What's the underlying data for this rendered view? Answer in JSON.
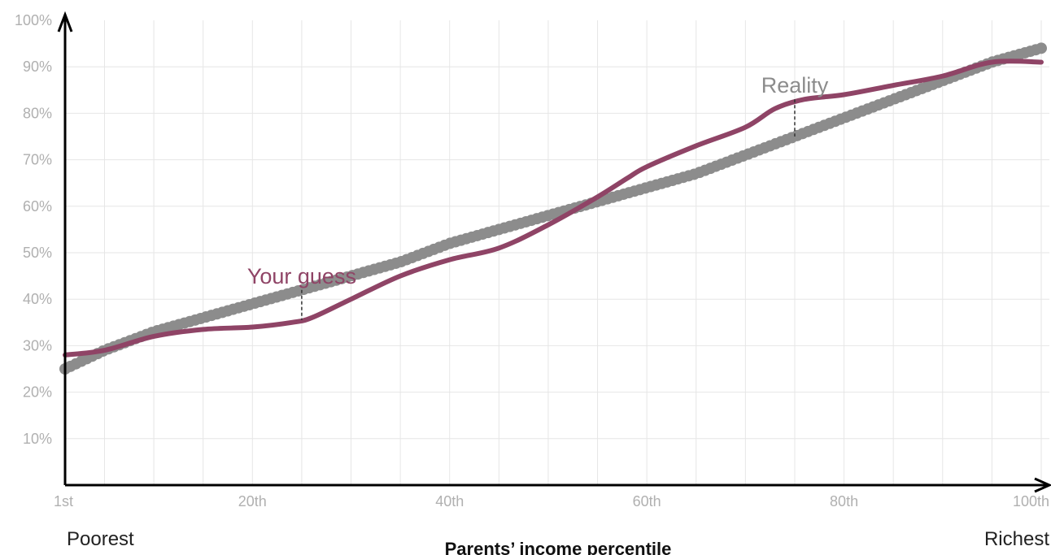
{
  "chart_data": {
    "type": "line",
    "title": "",
    "xlabel": "Parents’ income percentile",
    "ylabel": "",
    "x_start_label": "Poorest",
    "x_end_label": "Richest",
    "xlim": [
      1,
      100
    ],
    "ylim": [
      0,
      100
    ],
    "x_ticks": [
      {
        "value": 1,
        "label": "1st"
      },
      {
        "value": 20,
        "label": "20th"
      },
      {
        "value": 40,
        "label": "40th"
      },
      {
        "value": 60,
        "label": "60th"
      },
      {
        "value": 80,
        "label": "80th"
      },
      {
        "value": 100,
        "label": "100th"
      }
    ],
    "y_ticks": [
      {
        "value": 10,
        "label": "10%"
      },
      {
        "value": 20,
        "label": "20%"
      },
      {
        "value": 30,
        "label": "30%"
      },
      {
        "value": 40,
        "label": "40%"
      },
      {
        "value": 50,
        "label": "50%"
      },
      {
        "value": 60,
        "label": "60%"
      },
      {
        "value": 70,
        "label": "70%"
      },
      {
        "value": 80,
        "label": "80%"
      },
      {
        "value": 90,
        "label": "90%"
      },
      {
        "value": 100,
        "label": "100%"
      }
    ],
    "grid": true,
    "series": [
      {
        "name": "Reality",
        "style": "dots",
        "color": "#8c8c8c",
        "x": [
          1,
          5,
          10,
          15,
          20,
          25,
          30,
          35,
          40,
          45,
          50,
          55,
          60,
          65,
          70,
          75,
          80,
          85,
          90,
          95,
          100
        ],
        "y": [
          25,
          29,
          33,
          36,
          39,
          42,
          45,
          48,
          52,
          55,
          58,
          61,
          64,
          67,
          71,
          75,
          79,
          83,
          87,
          91,
          94
        ]
      },
      {
        "name": "Your guess",
        "style": "line",
        "color": "#8f4466",
        "x": [
          1,
          5,
          10,
          15,
          20,
          24,
          26,
          30,
          35,
          40,
          45,
          50,
          55,
          58,
          60,
          65,
          70,
          73,
          76,
          80,
          85,
          90,
          95,
          100
        ],
        "y": [
          28,
          29,
          32,
          33.5,
          34,
          35,
          36,
          40,
          45,
          48.5,
          51,
          56,
          62,
          66,
          68.5,
          73,
          77,
          81,
          83,
          84,
          86,
          88,
          91,
          91
        ]
      }
    ],
    "annotations": [
      {
        "text": "Reality",
        "series": "Reality",
        "color": "#8c8c8c",
        "x": 75,
        "from_y": 75,
        "to_y": 83
      },
      {
        "text": "Your guess",
        "series": "Your guess",
        "color": "#8f4466",
        "x": 25,
        "from_y": 35.5,
        "to_y": 42
      }
    ]
  }
}
